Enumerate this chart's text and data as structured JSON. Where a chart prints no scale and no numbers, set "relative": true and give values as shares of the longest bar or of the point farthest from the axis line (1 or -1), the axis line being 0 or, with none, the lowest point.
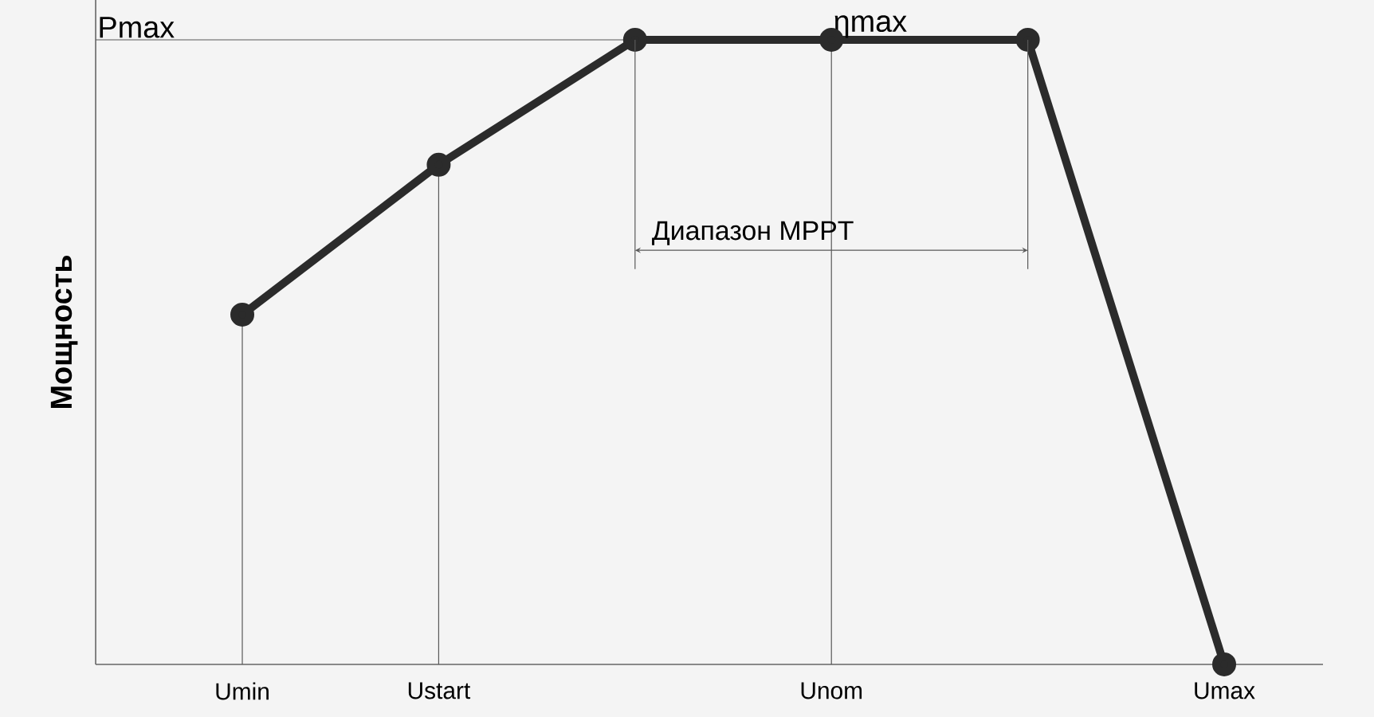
{
  "chart_data": {
    "type": "line",
    "relative": true,
    "ylabel": "Мощность",
    "categories": [
      "Umin",
      "Ustart",
      null,
      "Unom",
      null,
      "Umax"
    ],
    "series": [
      {
        "color": "#2b2b2b",
        "values": [
          0.56,
          0.8,
          1,
          1,
          1,
          0
        ]
      }
    ],
    "marker": "circle",
    "line_style": "solid",
    "ref_lines": [
      {
        "axis": "y",
        "value": 1,
        "label": "Pmax"
      },
      {
        "axis": "x",
        "value": "Umin"
      },
      {
        "axis": "x",
        "value": "Ustart"
      },
      {
        "axis": "x",
        "value": "Unom"
      }
    ],
    "annotations": [
      {
        "text": "ηmax",
        "x": "Unom",
        "y": 1
      },
      "Диапазон MPPT"
    ]
  }
}
